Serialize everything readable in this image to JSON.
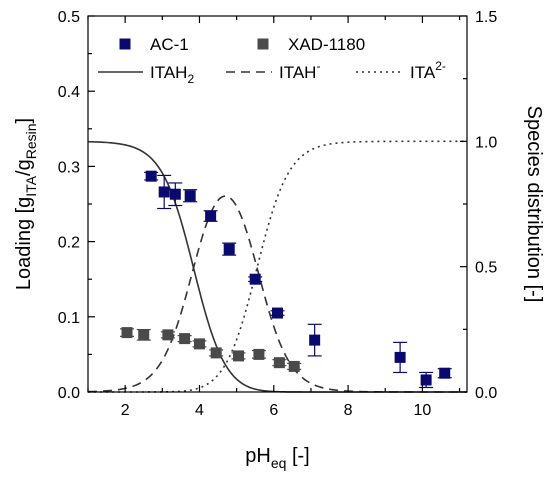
{
  "chart_data": {
    "type": "scatter",
    "x_axis": {
      "label_main": "pH",
      "label_sub": "eq",
      "label_unit": " [-]",
      "range": [
        1,
        11.2
      ],
      "ticks": [
        2,
        4,
        6,
        8,
        10
      ],
      "tick_labels": [
        "2",
        "4",
        "6",
        "8",
        "10"
      ]
    },
    "y_axis_left": {
      "label_main": "Loading [g",
      "label_sub1": "ITA",
      "label_mid": "/g",
      "label_sub2": "Resin",
      "label_end": "]",
      "range": [
        0,
        0.5
      ],
      "ticks": [
        0,
        0.1,
        0.2,
        0.3,
        0.4,
        0.5
      ],
      "tick_labels": [
        "0.0",
        "0.1",
        "0.2",
        "0.3",
        "0.4",
        "0.5"
      ]
    },
    "y_axis_right": {
      "label": "Species distribution [-]",
      "range": [
        0,
        1.5
      ],
      "ticks": [
        0,
        0.5,
        1.0,
        1.5
      ],
      "tick_labels": [
        "0.0",
        "0.5",
        "1.0",
        "1.5"
      ]
    },
    "scatter_series": [
      {
        "name": "AC-1",
        "color": "#0a0a6e",
        "points": [
          {
            "x": 2.7,
            "y": 0.287,
            "err": 0.005
          },
          {
            "x": 3.05,
            "y": 0.266,
            "err": 0.022
          },
          {
            "x": 3.35,
            "y": 0.263,
            "err": 0.015
          },
          {
            "x": 3.75,
            "y": 0.261,
            "err": 0.008
          },
          {
            "x": 4.3,
            "y": 0.234,
            "err": 0.007
          },
          {
            "x": 4.8,
            "y": 0.19,
            "err": 0.008
          },
          {
            "x": 5.5,
            "y": 0.15,
            "err": 0.003
          },
          {
            "x": 6.1,
            "y": 0.105,
            "err": 0.003
          },
          {
            "x": 7.1,
            "y": 0.069,
            "err": 0.021
          },
          {
            "x": 9.4,
            "y": 0.046,
            "err": 0.02
          },
          {
            "x": 10.1,
            "y": 0.016,
            "err": 0.01
          },
          {
            "x": 10.6,
            "y": 0.025,
            "err": 0.006
          }
        ]
      },
      {
        "name": "XAD-1180",
        "color": "#4a4a4a",
        "points": [
          {
            "x": 2.05,
            "y": 0.079,
            "err": 0.005
          },
          {
            "x": 2.5,
            "y": 0.076,
            "err": 0.007
          },
          {
            "x": 3.15,
            "y": 0.076,
            "err": 0.004
          },
          {
            "x": 3.6,
            "y": 0.071,
            "err": 0.004
          },
          {
            "x": 4.0,
            "y": 0.064,
            "err": 0.004
          },
          {
            "x": 4.45,
            "y": 0.052,
            "err": 0.004
          },
          {
            "x": 5.05,
            "y": 0.048,
            "err": 0.004
          },
          {
            "x": 5.6,
            "y": 0.05,
            "err": 0.005
          },
          {
            "x": 6.15,
            "y": 0.039,
            "err": 0.004
          },
          {
            "x": 6.55,
            "y": 0.034,
            "err": 0.004
          }
        ]
      }
    ],
    "line_series": [
      {
        "name_main": "ITAH",
        "name_sub": "2",
        "name_sup": "",
        "dash": "solid",
        "pka1": 3.84,
        "pka2": 5.55,
        "species": "H2A"
      },
      {
        "name_main": "ITAH",
        "name_sub": "",
        "name_sup": "-",
        "dash": "dashed",
        "pka1": 3.84,
        "pka2": 5.55,
        "species": "HA"
      },
      {
        "name_main": "ITA",
        "name_sub": "",
        "name_sup": "2-",
        "dash": "dotted",
        "pka1": 3.84,
        "pka2": 5.55,
        "species": "A"
      }
    ],
    "legend_placement": "top",
    "grid": false
  }
}
